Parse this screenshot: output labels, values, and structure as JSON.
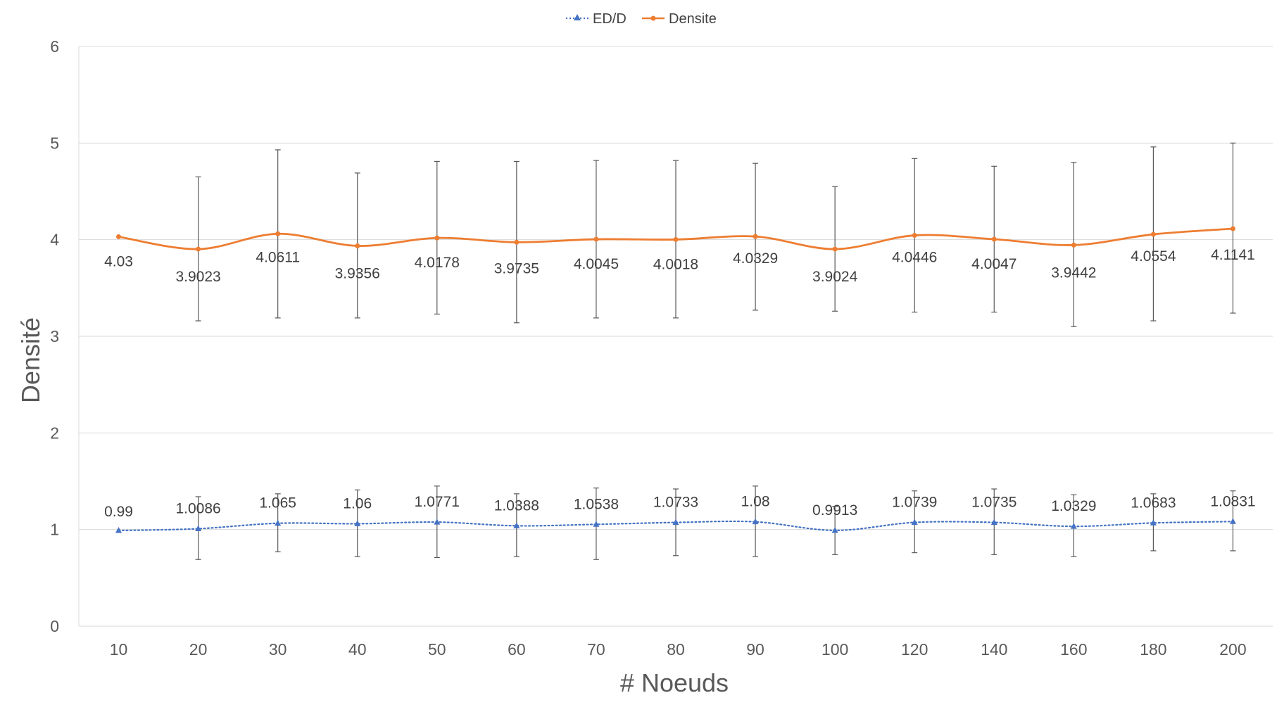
{
  "chart_data": {
    "type": "line",
    "title": "",
    "xlabel": "# Noeuds",
    "ylabel": "Densité",
    "categories": [
      "10",
      "20",
      "30",
      "40",
      "50",
      "60",
      "70",
      "80",
      "90",
      "100",
      "120",
      "140",
      "160",
      "180",
      "200"
    ],
    "ylim": [
      0,
      6
    ],
    "yticks": [
      "0",
      "1",
      "2",
      "3",
      "4",
      "5",
      "6"
    ],
    "grid": "horizontal",
    "legend_position": "top",
    "series": [
      {
        "name": "ED/D",
        "color": "#4472C4",
        "line_style": "dotted",
        "marker": "triangle",
        "values": [
          0.99,
          1.0086,
          1.065,
          1.06,
          1.0771,
          1.0388,
          1.0538,
          1.0733,
          1.08,
          0.9913,
          1.0739,
          1.0735,
          1.0329,
          1.0683,
          1.0831
        ],
        "labels": [
          "0.99",
          "1.0086",
          "1.065",
          "1.06",
          "1.0771",
          "1.0388",
          "1.0538",
          "1.0733",
          "1.08",
          "0.9913",
          "1.0739",
          "1.0735",
          "1.0329",
          "1.0683",
          "1.0831"
        ],
        "error_low": [
          0.99,
          0.69,
          0.77,
          0.72,
          0.71,
          0.72,
          0.69,
          0.73,
          0.72,
          0.74,
          0.76,
          0.74,
          0.72,
          0.78,
          0.78
        ],
        "error_high": [
          0.99,
          1.34,
          1.37,
          1.41,
          1.45,
          1.37,
          1.43,
          1.42,
          1.45,
          1.24,
          1.4,
          1.42,
          1.36,
          1.37,
          1.4
        ]
      },
      {
        "name": "Densite",
        "color": "#ED7D31",
        "line_style": "solid",
        "marker": "circle",
        "values": [
          4.03,
          3.9023,
          4.0611,
          3.9356,
          4.0178,
          3.9735,
          4.0045,
          4.0018,
          4.0329,
          3.9024,
          4.0446,
          4.0047,
          3.9442,
          4.0554,
          4.1141
        ],
        "labels": [
          "4.03",
          "3.9023",
          "4.0611",
          "3.9356",
          "4.0178",
          "3.9735",
          "4.0045",
          "4.0018",
          "4.0329",
          "3.9024",
          "4.0446",
          "4.0047",
          "3.9442",
          "4.0554",
          "4.1141"
        ],
        "error_low": [
          4.03,
          3.16,
          3.19,
          3.19,
          3.23,
          3.14,
          3.19,
          3.19,
          3.27,
          3.26,
          3.25,
          3.25,
          3.1,
          3.16,
          3.24
        ],
        "error_high": [
          4.03,
          4.65,
          4.93,
          4.69,
          4.81,
          4.81,
          4.82,
          4.82,
          4.79,
          4.55,
          4.84,
          4.76,
          4.8,
          4.96,
          5.0
        ]
      }
    ]
  }
}
